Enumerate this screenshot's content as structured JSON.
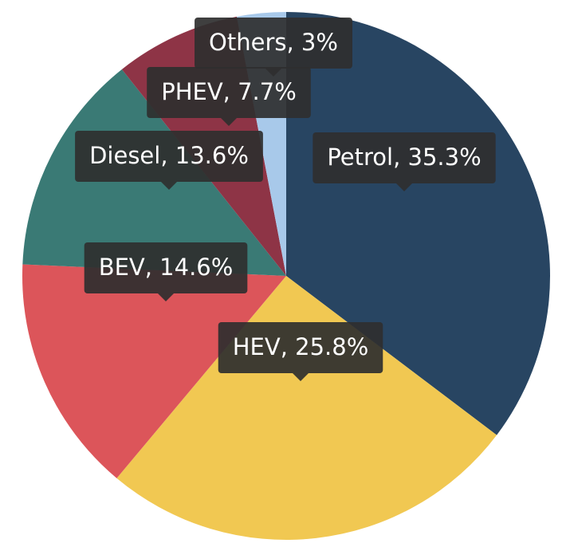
{
  "chart_data": {
    "type": "pie",
    "start_angle_deg": 0,
    "direction": "clockwise",
    "legend": "none",
    "slices": [
      {
        "label": "Petrol",
        "value": 35.3,
        "display": "Petrol, 35.3%",
        "color": "#284562"
      },
      {
        "label": "HEV",
        "value": 25.8,
        "display": "HEV, 25.8%",
        "color": "#f1c852"
      },
      {
        "label": "BEV",
        "value": 14.6,
        "display": "BEV, 14.6%",
        "color": "#dc555a"
      },
      {
        "label": "Diesel",
        "value": 13.6,
        "display": "Diesel, 13.6%",
        "color": "#3a7a75"
      },
      {
        "label": "PHEV",
        "value": 7.7,
        "display": "PHEV, 7.7%",
        "color": "#8e3446"
      },
      {
        "label": "Others",
        "value": 3,
        "display": "Others, 3%",
        "color": "#a8c9ea"
      }
    ]
  }
}
